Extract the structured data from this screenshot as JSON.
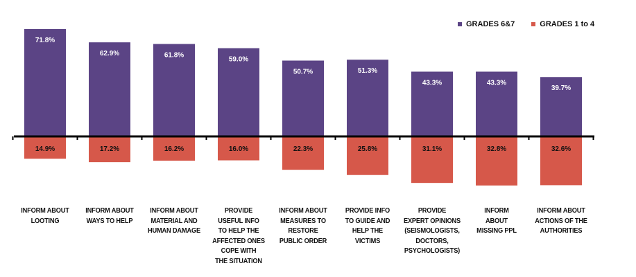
{
  "chart_data": {
    "type": "bar",
    "title": "",
    "xlabel": "",
    "ylabel": "",
    "legend_position": "top-right",
    "categories": [
      "INFORM ABOUT\nLOOTING",
      "INFORM ABOUT\nWAYS TO HELP",
      "INFORM ABOUT\nMATERIAL AND\nHUMAN DAMAGE",
      "PROVIDE\nUSEFUL INFO\nTO HELP THE\nAFFECTED ONES\nCOPE WITH\nTHE SITUATION",
      "INFORM ABOUT\nMEASURES TO\nRESTORE\nPUBLIC ORDER",
      "PROVIDE INFO\nTO GUIDE AND\nHELP THE\nVICTIMS",
      "PROVIDE\nEXPERT OPINIONS\n(SEISMOLOGISTS,\nDOCTORS,\nPSYCHOLOGISTS)",
      "INFORM\nABOUT\nMISSING PPL",
      "INFORM ABOUT\nACTIONS OF THE\nAUTHORITIES"
    ],
    "series": [
      {
        "name": "GRADES 6&7",
        "color": "#5b4485",
        "direction": "up",
        "values": [
          71.8,
          62.9,
          61.8,
          59.0,
          50.7,
          51.3,
          43.3,
          43.3,
          39.7
        ],
        "labels": [
          "71.8%",
          "62.9%",
          "61.8%",
          "59.0%",
          "50.7%",
          "51.3%",
          "43.3%",
          "43.3%",
          "39.7%"
        ]
      },
      {
        "name": "GRADES 1 to 4",
        "color": "#d6584a",
        "direction": "down",
        "values": [
          14.9,
          17.2,
          16.2,
          16.0,
          22.3,
          25.8,
          31.1,
          32.8,
          32.6
        ],
        "labels": [
          "14.9%",
          "17.2%",
          "16.2%",
          "16.0%",
          "22.3%",
          "25.8%",
          "31.1%",
          "32.8%",
          "32.6%"
        ]
      }
    ]
  }
}
